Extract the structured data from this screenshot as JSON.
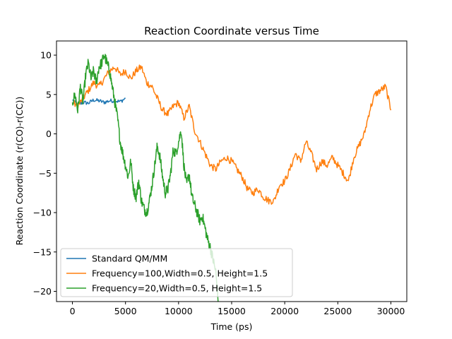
{
  "chart_data": {
    "type": "line",
    "title": "Reaction Coordinate versus Time",
    "xlabel": "Time (ps)",
    "ylabel": "Reaction Coordinate (r(CO)-r(CC))",
    "xlim": [
      -1500,
      31500
    ],
    "ylim": [
      -21.3,
      11.8
    ],
    "xticks": [
      0,
      5000,
      10000,
      15000,
      20000,
      25000,
      30000
    ],
    "xtick_labels": [
      "0",
      "5000",
      "10000",
      "15000",
      "20000",
      "25000",
      "30000"
    ],
    "yticks": [
      -20,
      -15,
      -10,
      -5,
      0,
      5,
      10
    ],
    "ytick_labels": [
      "−20",
      "−15",
      "−10",
      "−5",
      "0",
      "5",
      "10"
    ],
    "grid": false,
    "legend_position": "lower-left",
    "series": [
      {
        "name": "Standard QM/MM",
        "color": "#1f77b4",
        "noise": 0.25,
        "x": [
          0,
          500,
          1000,
          1500,
          2000,
          2500,
          3000,
          3500,
          4000,
          4500,
          5000
        ],
        "y": [
          4.3,
          3.7,
          4.0,
          3.9,
          4.3,
          4.2,
          4.0,
          4.2,
          4.2,
          4.1,
          4.5
        ]
      },
      {
        "name": "Frequency=100,Width=0.5, Height=1.5",
        "color": "#ff7f0e",
        "noise": 0.45,
        "x": [
          0,
          500,
          1000,
          1500,
          2000,
          2500,
          3000,
          3500,
          4000,
          4500,
          5000,
          5500,
          6000,
          6500,
          7000,
          7500,
          8000,
          8500,
          9000,
          9500,
          10000,
          10500,
          11000,
          11500,
          12000,
          12500,
          13000,
          13500,
          14000,
          14500,
          15000,
          15500,
          16000,
          16500,
          17000,
          17500,
          18000,
          18500,
          19000,
          19500,
          20000,
          20500,
          21000,
          21500,
          22000,
          22500,
          23000,
          23500,
          24000,
          24500,
          25000,
          25500,
          26000,
          26500,
          27000,
          27500,
          28000,
          28500,
          29000,
          29500,
          30000
        ],
        "y": [
          4.0,
          3.5,
          4.5,
          5.5,
          6.5,
          6.0,
          7.0,
          8.0,
          8.5,
          7.5,
          8.0,
          7.0,
          8.0,
          8.5,
          6.5,
          6.0,
          4.5,
          3.0,
          2.5,
          3.5,
          4.0,
          2.0,
          3.5,
          0.5,
          -1.0,
          -2.5,
          -4.0,
          -4.5,
          -3.5,
          -3.0,
          -3.5,
          -4.5,
          -5.5,
          -7.0,
          -7.5,
          -7.0,
          -8.0,
          -8.5,
          -8.5,
          -6.5,
          -6.0,
          -4.5,
          -2.5,
          -3.5,
          -1.0,
          -2.5,
          -4.5,
          -3.5,
          -4.0,
          -3.0,
          -4.0,
          -5.0,
          -6.0,
          -3.0,
          -1.5,
          0.0,
          3.0,
          5.0,
          5.5,
          6.0,
          3.0
        ]
      },
      {
        "name": "Frequency=20,Width=0.5, Height=1.5",
        "color": "#2ca02c",
        "noise": 0.7,
        "x": [
          0,
          250,
          500,
          750,
          1000,
          1250,
          1500,
          1750,
          2000,
          2250,
          2500,
          2750,
          3000,
          3250,
          3500,
          3750,
          4000,
          4250,
          4500,
          4750,
          5000,
          5250,
          5500,
          5750,
          6000,
          6250,
          6500,
          6750,
          7000,
          7250,
          7500,
          7750,
          8000,
          8250,
          8500,
          8750,
          9000,
          9250,
          9500,
          9750,
          10000,
          10250,
          10500,
          10750,
          11000,
          11250,
          11500,
          11750,
          12000,
          12250,
          12500,
          12750,
          13000,
          13250,
          13500,
          13750
        ],
        "y": [
          4.0,
          5.0,
          3.0,
          6.0,
          4.0,
          7.5,
          9.0,
          7.0,
          8.0,
          6.5,
          8.5,
          9.0,
          10.0,
          9.0,
          8.0,
          6.0,
          4.0,
          2.0,
          -1.0,
          -2.5,
          -4.0,
          -5.5,
          -3.5,
          -7.0,
          -8.0,
          -6.0,
          -8.5,
          -9.5,
          -10.0,
          -8.5,
          -6.5,
          -4.0,
          -1.5,
          -3.0,
          -5.5,
          -7.5,
          -7.0,
          -5.0,
          -2.0,
          -2.5,
          -1.0,
          0.5,
          -4.0,
          -6.5,
          -5.0,
          -8.0,
          -9.0,
          -10.0,
          -11.0,
          -10.5,
          -12.0,
          -13.5,
          -14.5,
          -16.0,
          -17.5,
          -21.3
        ]
      }
    ]
  }
}
